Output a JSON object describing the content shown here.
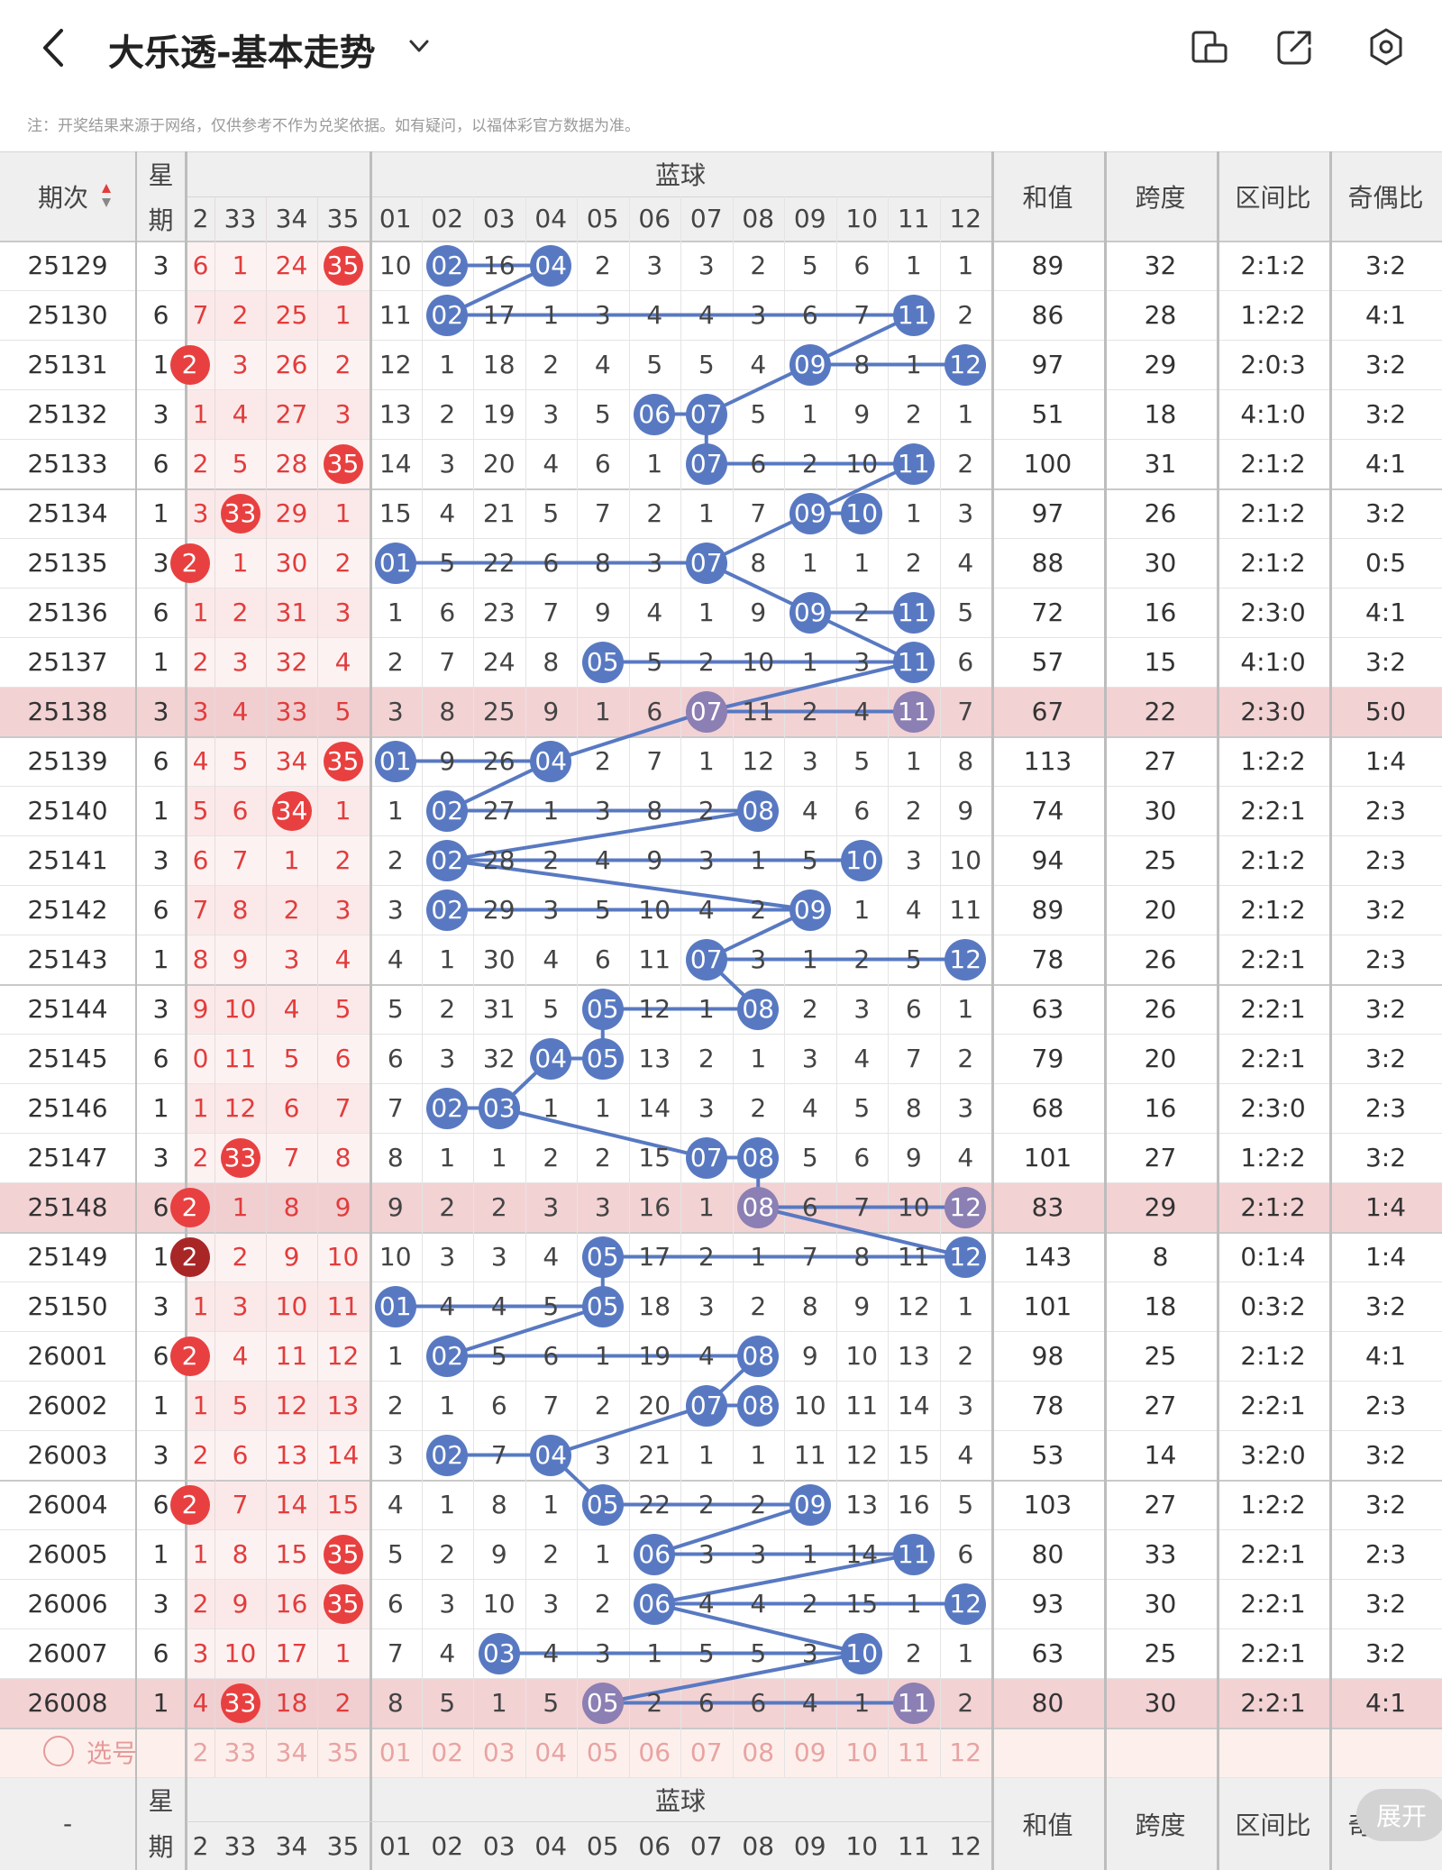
{
  "app": {
    "title": "大乐透-基本走势",
    "note": "注：开奖结果来源于网络，仅供参考不作为兑奖依据。如有疑问，以福体彩官方数据为准。",
    "icons": [
      "back-icon",
      "chevron-down-icon",
      "screen-rotate-icon",
      "share-icon",
      "settings-icon"
    ]
  },
  "header": {
    "period": "期次",
    "weekday_top": "星",
    "weekday_bottom": "期",
    "blue_group": "蓝球",
    "front_cols": [
      "2",
      "33",
      "34",
      "35"
    ],
    "blue_cols": [
      "01",
      "02",
      "03",
      "04",
      "05",
      "06",
      "07",
      "08",
      "09",
      "10",
      "11",
      "12"
    ],
    "sum": "和值",
    "span": "跨度",
    "zone": "区间比",
    "parity": "奇偶比"
  },
  "rows": [
    {
      "p": "25129",
      "w": "3",
      "f": [
        "6",
        "1",
        "24",
        "35"
      ],
      "fb": [
        0,
        0,
        0,
        1
      ],
      "b": [
        "10",
        "02",
        "16",
        "04",
        "2",
        "3",
        "3",
        "2",
        "5",
        "6",
        "1",
        "1"
      ],
      "bh": [
        2,
        4
      ],
      "s": "89",
      "sp": "32",
      "z": "2:1:2",
      "o": "3:2"
    },
    {
      "p": "25130",
      "w": "6",
      "f": [
        "7",
        "2",
        "25",
        "1"
      ],
      "fb": [
        0,
        0,
        0,
        0
      ],
      "b": [
        "11",
        "02",
        "17",
        "1",
        "3",
        "4",
        "4",
        "3",
        "6",
        "7",
        "11",
        "2"
      ],
      "bh": [
        2,
        11
      ],
      "s": "86",
      "sp": "28",
      "z": "1:2:2",
      "o": "4:1"
    },
    {
      "p": "25131",
      "w": "1",
      "f": [
        "2",
        "3",
        "26",
        "2"
      ],
      "fb": [
        1,
        0,
        0,
        0
      ],
      "b": [
        "12",
        "1",
        "18",
        "2",
        "4",
        "5",
        "5",
        "4",
        "09",
        "8",
        "1",
        "12"
      ],
      "bh": [
        9,
        12
      ],
      "s": "97",
      "sp": "29",
      "z": "2:0:3",
      "o": "3:2"
    },
    {
      "p": "25132",
      "w": "3",
      "f": [
        "1",
        "4",
        "27",
        "3"
      ],
      "fb": [
        0,
        0,
        0,
        0
      ],
      "b": [
        "13",
        "2",
        "19",
        "3",
        "5",
        "06",
        "07",
        "5",
        "1",
        "9",
        "2",
        "1"
      ],
      "bh": [
        6,
        7
      ],
      "s": "51",
      "sp": "18",
      "z": "4:1:0",
      "o": "3:2"
    },
    {
      "p": "25133",
      "w": "6",
      "f": [
        "2",
        "5",
        "28",
        "35"
      ],
      "fb": [
        0,
        0,
        0,
        1
      ],
      "b": [
        "14",
        "3",
        "20",
        "4",
        "6",
        "1",
        "07",
        "6",
        "2",
        "10",
        "11",
        "2"
      ],
      "bh": [
        7,
        11
      ],
      "s": "100",
      "sp": "31",
      "z": "2:1:2",
      "o": "4:1"
    },
    {
      "p": "25134",
      "w": "1",
      "f": [
        "3",
        "33",
        "29",
        "1"
      ],
      "fb": [
        0,
        1,
        0,
        0
      ],
      "b": [
        "15",
        "4",
        "21",
        "5",
        "7",
        "2",
        "1",
        "7",
        "09",
        "10",
        "1",
        "3"
      ],
      "bh": [
        9,
        10
      ],
      "s": "97",
      "sp": "26",
      "z": "2:1:2",
      "o": "3:2"
    },
    {
      "p": "25135",
      "w": "3",
      "f": [
        "2",
        "1",
        "30",
        "2"
      ],
      "fb": [
        1,
        0,
        0,
        0
      ],
      "b": [
        "01",
        "5",
        "22",
        "6",
        "8",
        "3",
        "07",
        "8",
        "1",
        "1",
        "2",
        "4"
      ],
      "bh": [
        1,
        7
      ],
      "s": "88",
      "sp": "30",
      "z": "2:1:2",
      "o": "0:5"
    },
    {
      "p": "25136",
      "w": "6",
      "f": [
        "1",
        "2",
        "31",
        "3"
      ],
      "fb": [
        0,
        0,
        0,
        0
      ],
      "b": [
        "1",
        "6",
        "23",
        "7",
        "9",
        "4",
        "1",
        "9",
        "09",
        "2",
        "11",
        "5"
      ],
      "bh": [
        9,
        11
      ],
      "s": "72",
      "sp": "16",
      "z": "2:3:0",
      "o": "4:1"
    },
    {
      "p": "25137",
      "w": "1",
      "f": [
        "2",
        "3",
        "32",
        "4"
      ],
      "fb": [
        0,
        0,
        0,
        0
      ],
      "b": [
        "2",
        "7",
        "24",
        "8",
        "05",
        "5",
        "2",
        "10",
        "1",
        "3",
        "11",
        "6"
      ],
      "bh": [
        5,
        11
      ],
      "s": "57",
      "sp": "15",
      "z": "4:1:0",
      "o": "3:2"
    },
    {
      "p": "25138",
      "w": "3",
      "f": [
        "3",
        "4",
        "33",
        "5"
      ],
      "fb": [
        0,
        0,
        0,
        0
      ],
      "b": [
        "3",
        "8",
        "25",
        "9",
        "1",
        "6",
        "07",
        "11",
        "2",
        "4",
        "11",
        "7"
      ],
      "bh": [
        7,
        11
      ],
      "s": "67",
      "sp": "22",
      "z": "2:3:0",
      "o": "5:0",
      "hl": 1
    },
    {
      "p": "25139",
      "w": "6",
      "f": [
        "4",
        "5",
        "34",
        "35"
      ],
      "fb": [
        0,
        0,
        0,
        1
      ],
      "b": [
        "01",
        "9",
        "26",
        "04",
        "2",
        "7",
        "1",
        "12",
        "3",
        "5",
        "1",
        "8"
      ],
      "bh": [
        1,
        4
      ],
      "s": "113",
      "sp": "27",
      "z": "1:2:2",
      "o": "1:4"
    },
    {
      "p": "25140",
      "w": "1",
      "f": [
        "5",
        "6",
        "34",
        "1"
      ],
      "fb": [
        0,
        0,
        1,
        0
      ],
      "b": [
        "1",
        "02",
        "27",
        "1",
        "3",
        "8",
        "2",
        "08",
        "4",
        "6",
        "2",
        "9"
      ],
      "bh": [
        2,
        8
      ],
      "s": "74",
      "sp": "30",
      "z": "2:2:1",
      "o": "2:3"
    },
    {
      "p": "25141",
      "w": "3",
      "f": [
        "6",
        "7",
        "1",
        "2"
      ],
      "fb": [
        0,
        0,
        0,
        0
      ],
      "b": [
        "2",
        "02",
        "28",
        "2",
        "4",
        "9",
        "3",
        "1",
        "5",
        "10",
        "3",
        "10"
      ],
      "bh": [
        2,
        10
      ],
      "s": "94",
      "sp": "25",
      "z": "2:1:2",
      "o": "2:3"
    },
    {
      "p": "25142",
      "w": "6",
      "f": [
        "7",
        "8",
        "2",
        "3"
      ],
      "fb": [
        0,
        0,
        0,
        0
      ],
      "b": [
        "3",
        "02",
        "29",
        "3",
        "5",
        "10",
        "4",
        "2",
        "09",
        "1",
        "4",
        "11"
      ],
      "bh": [
        2,
        9
      ],
      "s": "89",
      "sp": "20",
      "z": "2:1:2",
      "o": "3:2"
    },
    {
      "p": "25143",
      "w": "1",
      "f": [
        "8",
        "9",
        "3",
        "4"
      ],
      "fb": [
        0,
        0,
        0,
        0
      ],
      "b": [
        "4",
        "1",
        "30",
        "4",
        "6",
        "11",
        "07",
        "3",
        "1",
        "2",
        "5",
        "12"
      ],
      "bh": [
        7,
        12
      ],
      "s": "78",
      "sp": "26",
      "z": "2:2:1",
      "o": "2:3"
    },
    {
      "p": "25144",
      "w": "3",
      "f": [
        "9",
        "10",
        "4",
        "5"
      ],
      "fb": [
        0,
        0,
        0,
        0
      ],
      "b": [
        "5",
        "2",
        "31",
        "5",
        "05",
        "12",
        "1",
        "08",
        "2",
        "3",
        "6",
        "1"
      ],
      "bh": [
        5,
        8
      ],
      "s": "63",
      "sp": "26",
      "z": "2:2:1",
      "o": "3:2"
    },
    {
      "p": "25145",
      "w": "6",
      "f": [
        "0",
        "11",
        "5",
        "6"
      ],
      "fb": [
        0,
        0,
        0,
        0
      ],
      "b": [
        "6",
        "3",
        "32",
        "04",
        "05",
        "13",
        "2",
        "1",
        "3",
        "4",
        "7",
        "2"
      ],
      "bh": [
        4,
        5
      ],
      "s": "79",
      "sp": "20",
      "z": "2:2:1",
      "o": "3:2"
    },
    {
      "p": "25146",
      "w": "1",
      "f": [
        "1",
        "12",
        "6",
        "7"
      ],
      "fb": [
        0,
        0,
        0,
        0
      ],
      "b": [
        "7",
        "02",
        "03",
        "1",
        "1",
        "14",
        "3",
        "2",
        "4",
        "5",
        "8",
        "3"
      ],
      "bh": [
        2,
        3
      ],
      "s": "68",
      "sp": "16",
      "z": "2:3:0",
      "o": "2:3"
    },
    {
      "p": "25147",
      "w": "3",
      "f": [
        "2",
        "33",
        "7",
        "8"
      ],
      "fb": [
        0,
        1,
        0,
        0
      ],
      "b": [
        "8",
        "1",
        "1",
        "2",
        "2",
        "15",
        "07",
        "08",
        "5",
        "6",
        "9",
        "4"
      ],
      "bh": [
        7,
        8
      ],
      "s": "101",
      "sp": "27",
      "z": "1:2:2",
      "o": "3:2"
    },
    {
      "p": "25148",
      "w": "6",
      "f": [
        "2",
        "1",
        "8",
        "9"
      ],
      "fb": [
        1,
        0,
        0,
        0
      ],
      "b": [
        "9",
        "2",
        "2",
        "3",
        "3",
        "16",
        "1",
        "08",
        "6",
        "7",
        "10",
        "12"
      ],
      "bh": [
        8,
        12
      ],
      "s": "83",
      "sp": "29",
      "z": "2:1:2",
      "o": "1:4",
      "hl": 1
    },
    {
      "p": "25149",
      "w": "1",
      "f": [
        "2",
        "2",
        "9",
        "10"
      ],
      "fb": [
        2,
        0,
        0,
        0
      ],
      "b": [
        "10",
        "3",
        "3",
        "4",
        "05",
        "17",
        "2",
        "1",
        "7",
        "8",
        "11",
        "12"
      ],
      "bh": [
        5,
        12
      ],
      "s": "143",
      "sp": "8",
      "z": "0:1:4",
      "o": "1:4"
    },
    {
      "p": "25150",
      "w": "3",
      "f": [
        "1",
        "3",
        "10",
        "11"
      ],
      "fb": [
        0,
        0,
        0,
        0
      ],
      "b": [
        "01",
        "4",
        "4",
        "5",
        "05",
        "18",
        "3",
        "2",
        "8",
        "9",
        "12",
        "1"
      ],
      "bh": [
        1,
        5
      ],
      "s": "101",
      "sp": "18",
      "z": "0:3:2",
      "o": "3:2"
    },
    {
      "p": "26001",
      "w": "6",
      "f": [
        "2",
        "4",
        "11",
        "12"
      ],
      "fb": [
        1,
        0,
        0,
        0
      ],
      "b": [
        "1",
        "02",
        "5",
        "6",
        "1",
        "19",
        "4",
        "08",
        "9",
        "10",
        "13",
        "2"
      ],
      "bh": [
        2,
        8
      ],
      "s": "98",
      "sp": "25",
      "z": "2:1:2",
      "o": "4:1"
    },
    {
      "p": "26002",
      "w": "1",
      "f": [
        "1",
        "5",
        "12",
        "13"
      ],
      "fb": [
        0,
        0,
        0,
        0
      ],
      "b": [
        "2",
        "1",
        "6",
        "7",
        "2",
        "20",
        "07",
        "08",
        "10",
        "11",
        "14",
        "3"
      ],
      "bh": [
        7,
        8
      ],
      "s": "78",
      "sp": "27",
      "z": "2:2:1",
      "o": "2:3"
    },
    {
      "p": "26003",
      "w": "3",
      "f": [
        "2",
        "6",
        "13",
        "14"
      ],
      "fb": [
        0,
        0,
        0,
        0
      ],
      "b": [
        "3",
        "02",
        "7",
        "04",
        "3",
        "21",
        "1",
        "1",
        "11",
        "12",
        "15",
        "4"
      ],
      "bh": [
        2,
        4
      ],
      "s": "53",
      "sp": "14",
      "z": "3:2:0",
      "o": "3:2"
    },
    {
      "p": "26004",
      "w": "6",
      "f": [
        "2",
        "7",
        "14",
        "15"
      ],
      "fb": [
        1,
        0,
        0,
        0
      ],
      "b": [
        "4",
        "1",
        "8",
        "1",
        "05",
        "22",
        "2",
        "2",
        "09",
        "13",
        "16",
        "5"
      ],
      "bh": [
        5,
        9
      ],
      "s": "103",
      "sp": "27",
      "z": "1:2:2",
      "o": "3:2"
    },
    {
      "p": "26005",
      "w": "1",
      "f": [
        "1",
        "8",
        "15",
        "35"
      ],
      "fb": [
        0,
        0,
        0,
        1
      ],
      "b": [
        "5",
        "2",
        "9",
        "2",
        "1",
        "06",
        "3",
        "3",
        "1",
        "14",
        "11",
        "6"
      ],
      "bh": [
        6,
        11
      ],
      "s": "80",
      "sp": "33",
      "z": "2:2:1",
      "o": "2:3"
    },
    {
      "p": "26006",
      "w": "3",
      "f": [
        "2",
        "9",
        "16",
        "35"
      ],
      "fb": [
        0,
        0,
        0,
        1
      ],
      "b": [
        "6",
        "3",
        "10",
        "3",
        "2",
        "06",
        "4",
        "4",
        "2",
        "15",
        "1",
        "12"
      ],
      "bh": [
        6,
        12
      ],
      "s": "93",
      "sp": "30",
      "z": "2:2:1",
      "o": "3:2"
    },
    {
      "p": "26007",
      "w": "6",
      "f": [
        "3",
        "10",
        "17",
        "1"
      ],
      "fb": [
        0,
        0,
        0,
        0
      ],
      "b": [
        "7",
        "4",
        "03",
        "4",
        "3",
        "1",
        "5",
        "5",
        "3",
        "10",
        "2",
        "1"
      ],
      "bh": [
        3,
        10
      ],
      "s": "63",
      "sp": "25",
      "z": "2:2:1",
      "o": "3:2"
    },
    {
      "p": "26008",
      "w": "1",
      "f": [
        "4",
        "33",
        "18",
        "2"
      ],
      "fb": [
        0,
        1,
        0,
        0
      ],
      "b": [
        "8",
        "5",
        "1",
        "5",
        "05",
        "2",
        "6",
        "6",
        "4",
        "1",
        "11",
        "2"
      ],
      "bh": [
        5,
        11
      ],
      "s": "80",
      "sp": "30",
      "z": "2:2:1",
      "o": "4:1",
      "hl": 1
    }
  ],
  "select_row": {
    "label": "选号",
    "front": [
      "2",
      "33",
      "34",
      "35"
    ],
    "blue": [
      "01",
      "02",
      "03",
      "04",
      "05",
      "06",
      "07",
      "08",
      "09",
      "10",
      "11",
      "12"
    ]
  },
  "footer": {
    "period": "-",
    "expand": "展开"
  },
  "colors": {
    "blue_ball": "#5879c2",
    "red_ball": "#e84040",
    "dark_red_ball": "#a92626",
    "highlight_row": "#f3d2d4",
    "accent_red": "#e23c3c"
  }
}
